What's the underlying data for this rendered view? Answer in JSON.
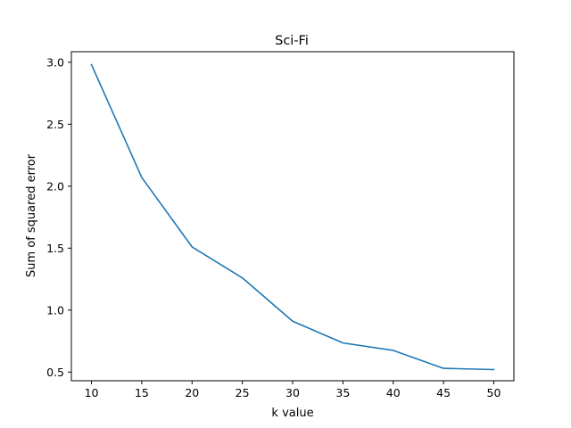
{
  "chart_data": {
    "type": "line",
    "title": "Sci-Fi",
    "xlabel": "k value",
    "ylabel": "Sum of squared error",
    "x": [
      10,
      15,
      20,
      25,
      30,
      35,
      40,
      45,
      50
    ],
    "series": [
      {
        "values": [
          2.98,
          2.07,
          1.51,
          1.26,
          0.91,
          0.735,
          0.675,
          0.53,
          0.52
        ],
        "color": "#1f77b4"
      }
    ],
    "xlim": [
      8,
      52
    ],
    "ylim": [
      0.43,
      3.085
    ],
    "xticks": [
      10,
      15,
      20,
      25,
      30,
      35,
      40,
      45,
      50
    ],
    "xtick_labels": [
      "10",
      "15",
      "20",
      "25",
      "30",
      "35",
      "40",
      "45",
      "50"
    ],
    "yticks": [
      0.5,
      1.0,
      1.5,
      2.0,
      2.5,
      3.0
    ],
    "ytick_labels": [
      "0.5",
      "1.0",
      "1.5",
      "2.0",
      "2.5",
      "3.0"
    ],
    "grid": false,
    "legend": "none"
  }
}
